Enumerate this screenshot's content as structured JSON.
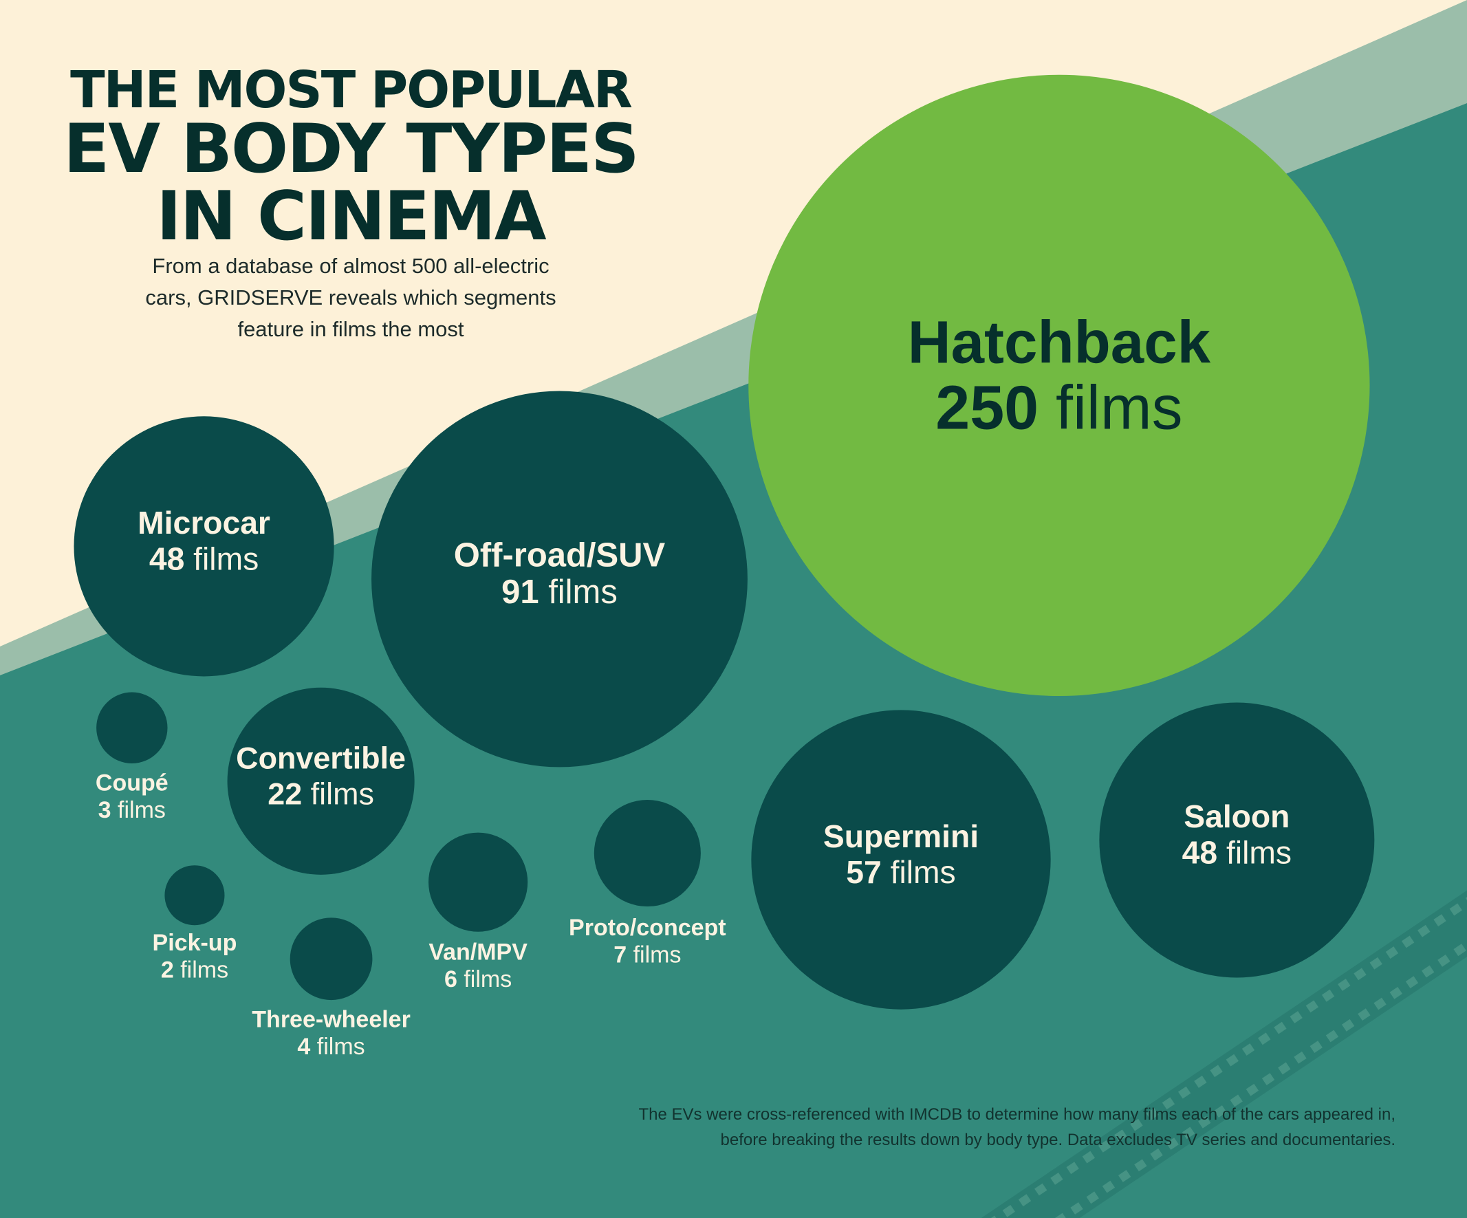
{
  "header": {
    "title_lines": [
      "THE MOST POPULAR",
      "EV BODY TYPES",
      "IN CINEMA"
    ],
    "subtitle_lines": [
      "From a database of almost 500 all-electric",
      "cars, GRIDSERVE reveals which segments",
      "feature in films the most"
    ]
  },
  "footnote_lines": [
    "The EVs were cross-referenced with IMCDB to determine how many films each of the cars appeared in,",
    "before breaking the results down by body type. Data excludes TV series and documentaries."
  ],
  "colors": {
    "background_cream": "#fdf1d8",
    "band_light": "#9bbeaa",
    "band_teal": "#338a7c",
    "bubble_dark": "#0a4b4a",
    "bubble_highlight": "#72ba42",
    "text_dark": "#062f2c",
    "text_light": "#fbf3e2"
  },
  "chart_data": {
    "type": "bubble",
    "unit": "films",
    "highlight": "Hatchback",
    "categories": [
      "Hatchback",
      "Off-road/SUV",
      "Supermini",
      "Microcar",
      "Saloon",
      "Convertible",
      "Proto/concept",
      "Van/MPV",
      "Three-wheeler",
      "Coupé",
      "Pick-up"
    ],
    "values": [
      250,
      91,
      57,
      48,
      48,
      22,
      7,
      6,
      4,
      3,
      2
    ],
    "labels": [
      {
        "name": "Hatchback",
        "count": "250",
        "unit": "films"
      },
      {
        "name": "Off-road/SUV",
        "count": "91",
        "unit": "films"
      },
      {
        "name": "Supermini",
        "count": "57",
        "unit": "films"
      },
      {
        "name": "Microcar",
        "count": "48",
        "unit": "films"
      },
      {
        "name": "Saloon",
        "count": "48",
        "unit": "films"
      },
      {
        "name": "Convertible",
        "count": "22",
        "unit": "films"
      },
      {
        "name": "Proto/concept",
        "count": "7",
        "unit": "films"
      },
      {
        "name": "Van/MPV",
        "count": "6",
        "unit": "films"
      },
      {
        "name": "Three-wheeler",
        "count": "4",
        "unit": "films"
      },
      {
        "name": "Coupé",
        "count": "3",
        "unit": "films"
      },
      {
        "name": "Pick-up",
        "count": "2",
        "unit": "films"
      }
    ]
  }
}
